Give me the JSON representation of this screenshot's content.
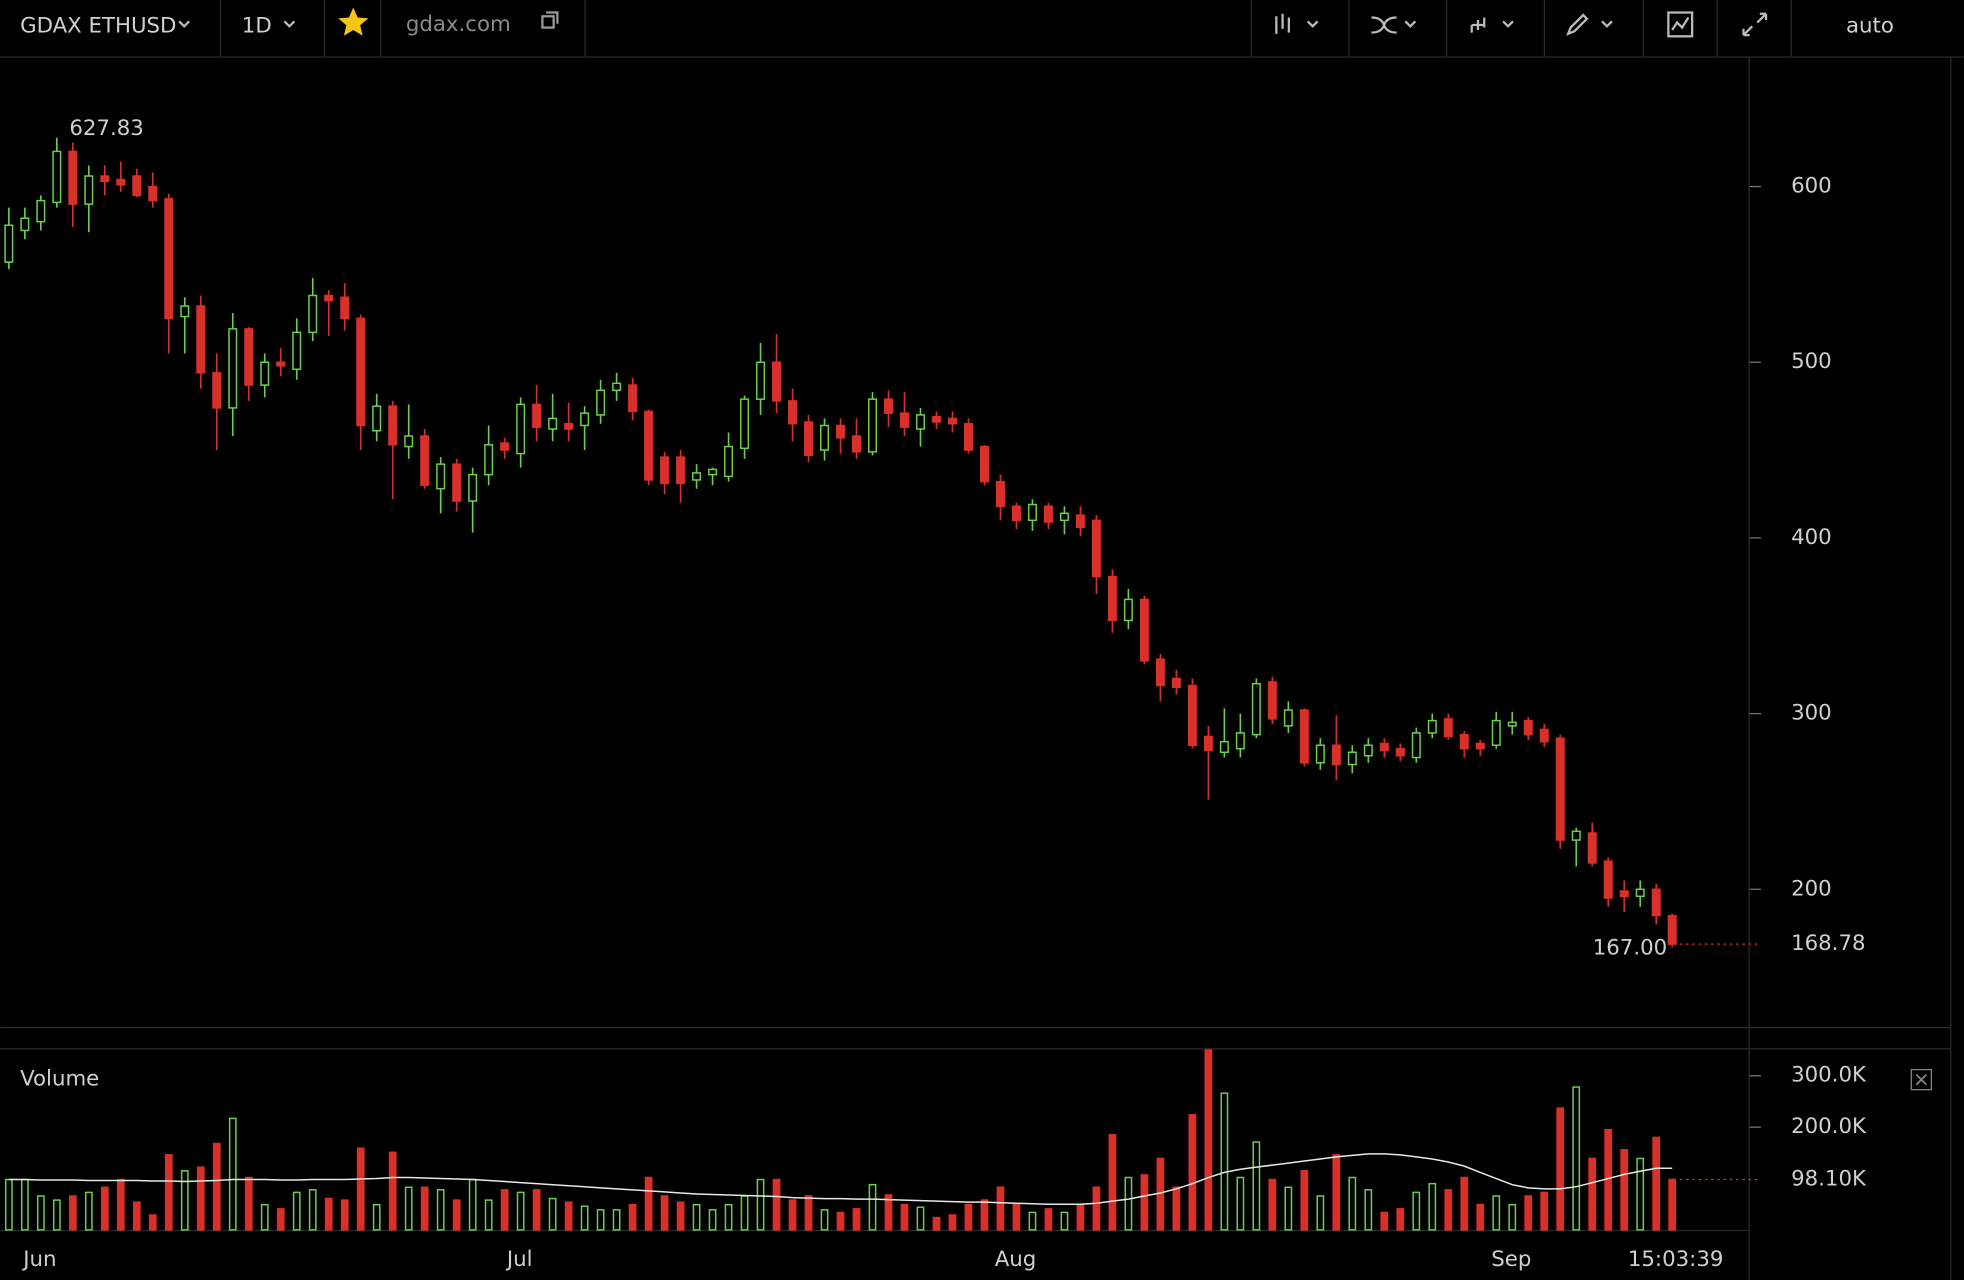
{
  "toolbar": {
    "symbol": "GDAX ETHUSD",
    "interval": "1D",
    "source": "gdax.com",
    "scale_mode": "auto"
  },
  "time": "15:03:39",
  "chart_data": [
    {
      "type": "candlestick",
      "categories": [
        null,
        "Jun",
        null,
        null,
        null,
        null,
        null,
        null,
        null,
        null,
        null,
        null,
        null,
        null,
        null,
        null,
        null,
        null,
        null,
        null,
        null,
        null,
        null,
        null,
        null,
        null,
        null,
        null,
        null,
        null,
        null,
        "Jul",
        null,
        null,
        null,
        null,
        null,
        null,
        null,
        null,
        null,
        null,
        null,
        null,
        null,
        null,
        null,
        null,
        null,
        null,
        null,
        null,
        null,
        null,
        null,
        null,
        null,
        null,
        null,
        null,
        null,
        null,
        "Aug",
        null,
        null,
        null,
        null,
        null,
        null,
        null,
        null,
        null,
        null,
        null,
        null,
        null,
        null,
        null,
        null,
        null,
        null,
        null,
        null,
        null,
        null,
        null,
        null,
        null,
        null,
        null,
        null,
        null,
        null,
        "Sep",
        null,
        null,
        null,
        null,
        null,
        null,
        null,
        null,
        null,
        null,
        null
      ],
      "open": [
        557,
        575,
        580,
        591,
        620,
        590,
        606,
        604,
        606,
        600,
        593,
        526,
        532,
        494,
        474,
        519,
        487,
        500,
        496,
        517,
        538,
        537,
        525,
        461,
        475,
        452,
        458,
        428,
        442,
        421,
        436,
        454,
        448,
        476,
        462,
        465,
        464,
        470,
        484,
        487,
        472,
        446,
        446,
        433,
        436,
        435,
        451,
        479,
        500,
        478,
        466,
        450,
        464,
        458,
        449,
        479,
        471,
        462,
        469,
        468,
        465,
        452,
        432,
        418,
        410,
        418,
        410,
        413,
        410,
        378,
        353,
        365,
        331,
        320,
        316,
        287,
        278,
        280,
        288,
        318,
        293,
        302,
        272,
        282,
        271,
        276,
        283,
        280,
        275,
        289,
        297,
        288,
        283,
        282,
        293,
        296,
        291,
        286,
        228,
        232,
        216,
        199,
        196,
        200,
        185
      ],
      "high": [
        588,
        588,
        595,
        627.83,
        625,
        612,
        612,
        614,
        610,
        608,
        596,
        537,
        538,
        505,
        528,
        520,
        505,
        508,
        525,
        548,
        541,
        545,
        527,
        482,
        478,
        476,
        462,
        446,
        445,
        440,
        464,
        457,
        480,
        487,
        482,
        477,
        475,
        490,
        494,
        491,
        473,
        449,
        450,
        442,
        440,
        460,
        481,
        511,
        516,
        485,
        470,
        468,
        468,
        468,
        483,
        484,
        483,
        474,
        472,
        472,
        468,
        453,
        436,
        420,
        422,
        420,
        418,
        418,
        413,
        382,
        371,
        367,
        334,
        325,
        320,
        293,
        303,
        300,
        320,
        321,
        307,
        303,
        286,
        299,
        282,
        286,
        286,
        283,
        292,
        300,
        300,
        290,
        285,
        301,
        301,
        298,
        294,
        288,
        235,
        238,
        218,
        205,
        205,
        203,
        186
      ],
      "low": [
        553,
        570,
        575,
        588,
        577,
        574,
        595,
        597,
        594,
        588,
        505,
        505,
        485,
        450,
        458,
        478,
        480,
        492,
        490,
        512,
        515,
        518,
        450,
        455,
        422,
        445,
        428,
        414,
        415,
        403,
        430,
        445,
        440,
        455,
        455,
        455,
        450,
        465,
        478,
        467,
        430,
        425,
        420,
        428,
        430,
        432,
        445,
        470,
        471,
        455,
        443,
        444,
        448,
        445,
        447,
        463,
        458,
        452,
        462,
        460,
        448,
        430,
        410,
        405,
        404,
        405,
        402,
        401,
        368,
        346,
        348,
        328,
        307,
        311,
        280,
        251,
        275,
        275,
        286,
        294,
        289,
        270,
        268,
        262,
        266,
        272,
        275,
        273,
        272,
        286,
        285,
        275,
        276,
        280,
        288,
        285,
        281,
        223,
        213,
        213,
        190,
        187,
        190,
        180,
        167
      ],
      "close": [
        578,
        582,
        592,
        620,
        590,
        606,
        603,
        601,
        595,
        592,
        525,
        532,
        494,
        474,
        519,
        487,
        500,
        498,
        517,
        538,
        535,
        525,
        464,
        475,
        453,
        458,
        430,
        442,
        421,
        436,
        453,
        450,
        476,
        463,
        468,
        462,
        471,
        484,
        488,
        472,
        433,
        431,
        431,
        437,
        439,
        452,
        479,
        500,
        478,
        465,
        447,
        464,
        457,
        449,
        479,
        471,
        463,
        470,
        466,
        465,
        450,
        432,
        418,
        410,
        419,
        409,
        414,
        406,
        378,
        353,
        365,
        330,
        316,
        315,
        282,
        279,
        284,
        289,
        317,
        297,
        302,
        272,
        282,
        271,
        278,
        282,
        279,
        276,
        289,
        296,
        287,
        280,
        280,
        296,
        295,
        288,
        284,
        228,
        233,
        215,
        195,
        196,
        200,
        185,
        168.78
      ],
      "extremes": {
        "high": {
          "value": 627.83,
          "label": "627.83"
        },
        "low": {
          "value": 167,
          "label": "167.00"
        }
      },
      "up_color": "#6ccf4c",
      "down_color": "#d8302b",
      "ylim": [
        121.6,
        673.4
      ],
      "yticks": [
        200,
        300,
        400,
        500,
        600
      ]
    },
    {
      "type": "bar",
      "title": "Volume",
      "values": [
        98000,
        98000,
        66000,
        58000,
        66000,
        73000,
        83000,
        98000,
        54000,
        29000,
        146000,
        115000,
        122000,
        168000,
        217000,
        102000,
        49000,
        41000,
        73000,
        78000,
        61000,
        58000,
        159000,
        49000,
        151000,
        83000,
        83000,
        78000,
        58000,
        98000,
        58000,
        78000,
        73000,
        78000,
        61000,
        54000,
        46000,
        39000,
        39000,
        49000,
        102000,
        66000,
        54000,
        49000,
        39000,
        49000,
        66000,
        98000,
        98000,
        58000,
        66000,
        39000,
        34000,
        41000,
        88000,
        68000,
        49000,
        44000,
        24000,
        29000,
        49000,
        58000,
        83000,
        49000,
        34000,
        41000,
        34000,
        49000,
        83000,
        185000,
        102000,
        107000,
        139000,
        83000,
        224000,
        350000,
        266000,
        102000,
        171000,
        98000,
        83000,
        115000,
        66000,
        146000,
        102000,
        78000,
        34000,
        41000,
        73000,
        90000,
        78000,
        102000,
        49000,
        66000,
        49000,
        66000,
        73000,
        237000,
        278000,
        139000,
        195000,
        156000,
        139000,
        180000,
        98100
      ],
      "moving_average": [
        98000,
        98000,
        97000,
        97000,
        97000,
        96000,
        96000,
        96000,
        96000,
        95000,
        95000,
        94000,
        95000,
        96000,
        98000,
        98000,
        98000,
        97000,
        97000,
        98000,
        98000,
        98000,
        99000,
        100000,
        102000,
        102000,
        101000,
        100000,
        99000,
        98000,
        96000,
        94000,
        92000,
        90000,
        88000,
        86000,
        84000,
        82000,
        80000,
        78000,
        76000,
        74000,
        72000,
        70000,
        69000,
        68000,
        67000,
        66000,
        65000,
        63000,
        62000,
        61000,
        61000,
        60000,
        60000,
        59000,
        58000,
        57000,
        56000,
        55000,
        54000,
        54000,
        53000,
        52000,
        51000,
        50000,
        50000,
        50000,
        52000,
        56000,
        60000,
        66000,
        72000,
        80000,
        90000,
        102000,
        112000,
        118000,
        122000,
        126000,
        130000,
        134000,
        138000,
        142000,
        145000,
        148000,
        148000,
        146000,
        142000,
        138000,
        132000,
        124000,
        112000,
        100000,
        88000,
        82000,
        80000,
        80000,
        84000,
        92000,
        100000,
        108000,
        114000,
        120000,
        120000
      ],
      "last_value": {
        "value": 98100,
        "label": "98.10K"
      },
      "ylim": [
        0,
        351000
      ],
      "yticks": [
        {
          "value": 200000,
          "label": "200.0K"
        },
        {
          "value": 300000,
          "label": "300.0K"
        }
      ]
    }
  ]
}
